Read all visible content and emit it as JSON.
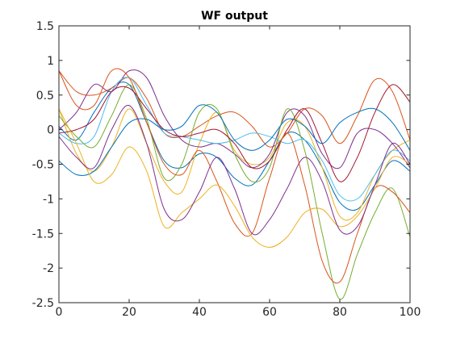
{
  "chart_data": {
    "type": "line",
    "title": "WF output",
    "xlabel": "",
    "ylabel": "",
    "xlim": [
      0,
      100
    ],
    "ylim": [
      -2.5,
      1.5
    ],
    "grid": false,
    "x_ticks": [
      0,
      20,
      40,
      60,
      80,
      100
    ],
    "y_ticks": [
      -2.5,
      -2,
      -1.5,
      -1,
      -0.5,
      0,
      0.5,
      1,
      1.5
    ],
    "x_tick_labels": [
      "0",
      "20",
      "40",
      "60",
      "80",
      "100"
    ],
    "y_tick_labels": [
      "-2.5",
      "-2",
      "-1.5",
      "-1",
      "-0.5",
      "0",
      "0.5",
      "1",
      "1.5"
    ],
    "x": [
      0,
      5,
      10,
      15,
      20,
      25,
      30,
      35,
      40,
      45,
      50,
      55,
      60,
      65,
      70,
      75,
      80,
      85,
      90,
      95,
      100
    ],
    "series": [
      {
        "color": "#0072bd",
        "values": [
          0.05,
          -0.15,
          0.25,
          0.6,
          0.65,
          0.1,
          -0.45,
          -0.55,
          -0.35,
          -0.4,
          -0.7,
          -0.8,
          -0.45,
          -0.05,
          -0.15,
          -0.55,
          -1.05,
          -1.15,
          -0.8,
          -0.45,
          -0.6
        ]
      },
      {
        "color": "#d95319",
        "values": [
          0.85,
          0.55,
          0.5,
          0.6,
          0.75,
          0.45,
          -0.05,
          -0.1,
          0.05,
          0.2,
          0.25,
          0.05,
          -0.25,
          -0.05,
          0.3,
          0.2,
          -0.2,
          0.2,
          0.72,
          0.55,
          -0.15
        ]
      },
      {
        "color": "#edb120",
        "values": [
          0.3,
          -0.35,
          -0.6,
          -0.25,
          0.3,
          -0.2,
          -0.75,
          -0.9,
          -0.2,
          0.25,
          -0.3,
          -0.5,
          -0.4,
          0.1,
          0.05,
          -0.55,
          -1.25,
          -1.2,
          -0.65,
          -0.3,
          -0.15
        ]
      },
      {
        "color": "#7e2f8e",
        "values": [
          0.0,
          0.25,
          0.65,
          0.55,
          0.85,
          0.75,
          0.2,
          -0.15,
          -0.25,
          -0.2,
          -0.35,
          -0.55,
          -0.35,
          0.25,
          0.2,
          -0.35,
          -0.55,
          -0.05,
          0.0,
          -0.2,
          -0.55
        ]
      },
      {
        "color": "#77ac30",
        "values": [
          0.2,
          -0.1,
          -0.25,
          0.2,
          0.65,
          0.15,
          -0.7,
          -0.5,
          0.25,
          0.3,
          -0.35,
          -0.75,
          -0.55,
          0.3,
          -0.3,
          -1.5,
          -2.45,
          -1.8,
          -1.2,
          -0.85,
          -1.55
        ]
      },
      {
        "color": "#4dbeee",
        "values": [
          -0.05,
          -0.2,
          -0.1,
          0.55,
          0.75,
          0.35,
          -0.05,
          -0.1,
          -0.15,
          -0.2,
          -0.15,
          -0.05,
          -0.1,
          -0.2,
          -0.15,
          -0.45,
          -0.95,
          -1.0,
          -0.65,
          -0.3,
          -0.45
        ]
      },
      {
        "color": "#a2142f",
        "values": [
          -0.05,
          0.0,
          0.15,
          0.55,
          0.6,
          0.3,
          0.0,
          -0.1,
          -0.05,
          0.0,
          -0.2,
          -0.55,
          -0.45,
          0.0,
          0.3,
          -0.2,
          -0.75,
          -0.4,
          0.25,
          0.65,
          0.4
        ]
      },
      {
        "color": "#0072bd",
        "values": [
          -0.45,
          -0.65,
          -0.6,
          -0.25,
          0.1,
          0.15,
          0.0,
          0.05,
          0.35,
          0.25,
          -0.15,
          -0.3,
          -0.15,
          0.15,
          0.05,
          -0.2,
          0.1,
          0.25,
          0.3,
          0.1,
          -0.3
        ]
      },
      {
        "color": "#d95319",
        "values": [
          0.85,
          0.35,
          0.35,
          0.85,
          0.75,
          0.1,
          -0.5,
          -0.65,
          -0.3,
          -0.75,
          -1.35,
          -1.5,
          -0.7,
          -0.05,
          -0.8,
          -1.9,
          -2.2,
          -1.5,
          -0.85,
          -0.9,
          -1.2
        ]
      },
      {
        "color": "#edb120",
        "values": [
          0.3,
          -0.2,
          -0.75,
          -0.65,
          -0.25,
          -0.6,
          -1.4,
          -1.2,
          -1.0,
          -0.8,
          -1.1,
          -1.55,
          -1.7,
          -1.55,
          -1.2,
          -1.15,
          -1.4,
          -1.25,
          -0.85,
          -0.4,
          -0.5
        ]
      },
      {
        "color": "#7e2f8e",
        "values": [
          -0.1,
          -0.4,
          -0.55,
          0.0,
          0.35,
          -0.2,
          -1.15,
          -1.3,
          -0.9,
          -0.4,
          -0.85,
          -1.5,
          -1.3,
          -0.85,
          -0.4,
          -0.75,
          -1.45,
          -1.4,
          -0.8,
          -0.2,
          -0.5
        ]
      }
    ]
  }
}
